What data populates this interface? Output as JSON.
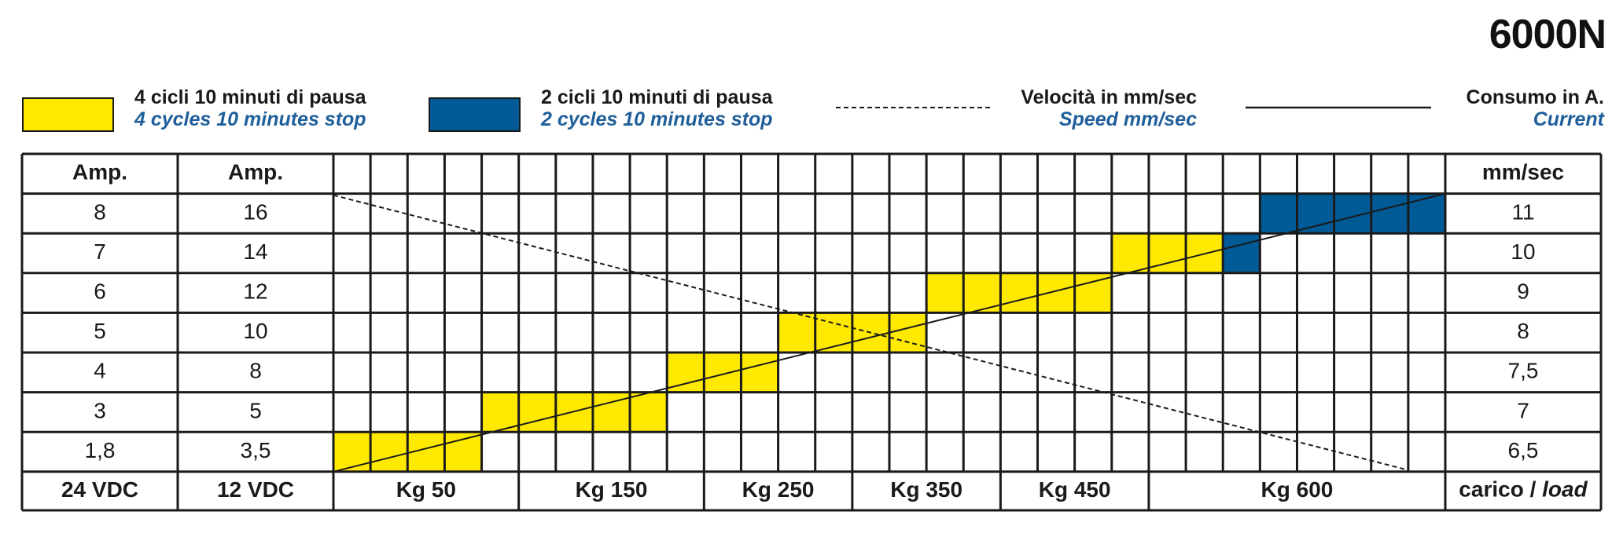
{
  "title": "6000N",
  "colors": {
    "yellow": "#FFE900",
    "blue": "#005A96",
    "grid": "#1a1a1a",
    "accent_text": "#1F5F9A"
  },
  "legend": [
    {
      "it": "4 cicli 10 minuti di pausa",
      "en": "4 cycles 10 minutes stop"
    },
    {
      "it": "2 cicli 10 minuti di pausa",
      "en": "2 cycles 10 minutes stop"
    },
    {
      "it": "Velocità in mm/sec",
      "en": "Speed mm/sec"
    },
    {
      "it": "Consumo in A.",
      "en": "Current"
    }
  ],
  "chart_data": {
    "type": "table",
    "headers": {
      "amp24": "Amp.",
      "amp12": "Amp.",
      "speed": "mm/sec"
    },
    "amp_24vdc": [
      "8",
      "7",
      "6",
      "5",
      "4",
      "3",
      "1,8"
    ],
    "amp_12vdc": [
      "16",
      "14",
      "12",
      "10",
      "8",
      "5",
      "3,5"
    ],
    "speed_mm_sec": [
      "11",
      "10",
      "9",
      "8",
      "7,5",
      "7",
      "6,5"
    ],
    "footer": {
      "amp24": "24 VDC",
      "amp12": "12 VDC",
      "load_it": "carico / ",
      "load_en": "load"
    },
    "load_labels": [
      "Kg 50",
      "Kg 150",
      "Kg 250",
      "Kg 350",
      "Kg 450",
      "Kg 600"
    ],
    "grid_columns": 30,
    "duty_bands": [
      {
        "row": 7,
        "from_col": 1,
        "to_col": 4,
        "cycles": "4 cicli 10 minuti di pausa"
      },
      {
        "row": 6,
        "from_col": 5,
        "to_col": 9,
        "cycles": "4 cicli 10 minuti di pausa"
      },
      {
        "row": 5,
        "from_col": 10,
        "to_col": 12,
        "cycles": "4 cicli 10 minuti di pausa"
      },
      {
        "row": 4,
        "from_col": 13,
        "to_col": 16,
        "cycles": "4 cicli 10 minuti di pausa"
      },
      {
        "row": 3,
        "from_col": 17,
        "to_col": 21,
        "cycles": "4 cicli 10 minuti di pausa"
      },
      {
        "row": 2,
        "from_col": 22,
        "to_col": 24,
        "cycles": "4 cicli 10 minuti di pausa"
      },
      {
        "row": 2,
        "from_col": 25,
        "to_col": 25,
        "cycles": "2 cicli 10 minuti di pausa"
      },
      {
        "row": 1,
        "from_col": 26,
        "to_col": 30,
        "cycles": "2 cicli 10 minuti di pausa"
      }
    ],
    "current_line": {
      "style": "solid",
      "from": {
        "col": 0,
        "row": 7
      },
      "to": {
        "col": 30,
        "row": 1
      }
    },
    "speed_line": {
      "style": "dashed",
      "from": {
        "col": 0,
        "row": 1
      },
      "to": {
        "col": 29,
        "row": 7
      }
    }
  }
}
